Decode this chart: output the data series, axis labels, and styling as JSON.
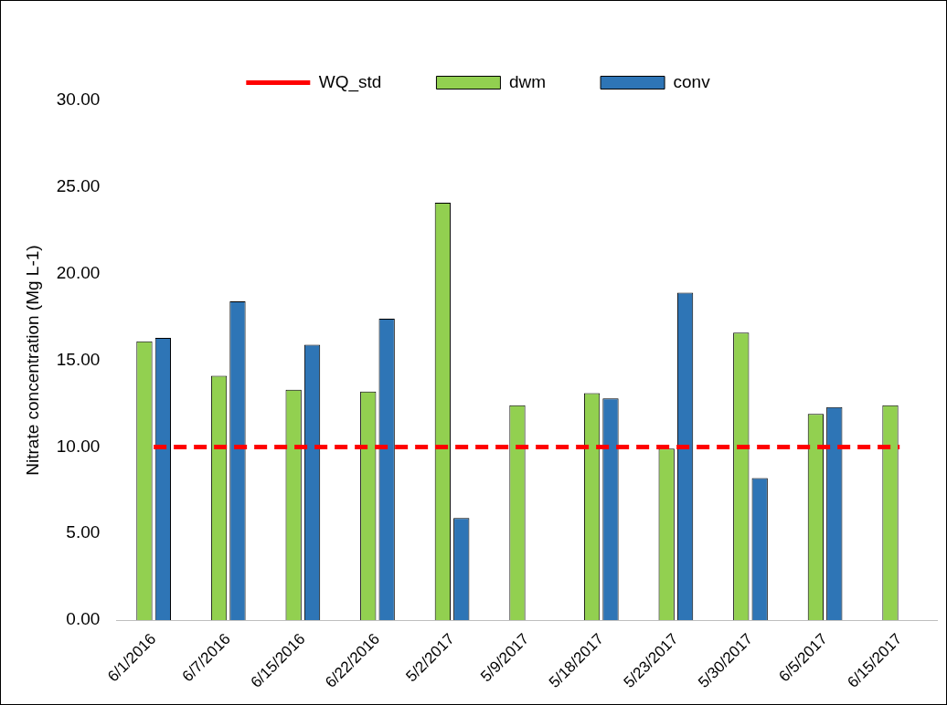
{
  "chart_data": {
    "type": "bar",
    "ylabel": "Nitrate concentration (Mg L-1)",
    "categories": [
      "6/1/2016",
      "6/7/2016",
      "6/15/2016",
      "6/22/2016",
      "5/2/2017",
      "5/9/2017",
      "5/18/2017",
      "5/23/2017",
      "5/30/2017",
      "6/5/2017",
      "6/15/2017"
    ],
    "series": [
      {
        "name": "dwm",
        "color": "#92d050",
        "values": [
          16.1,
          14.1,
          13.3,
          13.2,
          24.1,
          12.4,
          13.1,
          9.9,
          16.6,
          11.9,
          12.4
        ]
      },
      {
        "name": "conv",
        "color": "#2e75b6",
        "values": [
          16.3,
          18.4,
          15.9,
          17.4,
          5.9,
          null,
          12.8,
          18.9,
          8.2,
          12.3,
          null
        ]
      },
      {
        "name": "WQ_std",
        "type": "line",
        "color": "#ff0000",
        "line_style": "dashed",
        "marker": "none",
        "values": [
          10,
          10,
          10,
          10,
          10,
          10,
          10,
          10,
          10,
          10,
          10
        ]
      }
    ],
    "ylim": [
      0,
      30
    ],
    "yticks": [
      {
        "value": 0,
        "label": "0.00"
      },
      {
        "value": 5,
        "label": "5.00"
      },
      {
        "value": 10,
        "label": "10.00"
      },
      {
        "value": 15,
        "label": "15.00"
      },
      {
        "value": 20,
        "label": "20.00"
      },
      {
        "value": 25,
        "label": "25.00"
      },
      {
        "value": 30,
        "label": "30.00"
      }
    ],
    "grid": false,
    "legend": "top"
  }
}
